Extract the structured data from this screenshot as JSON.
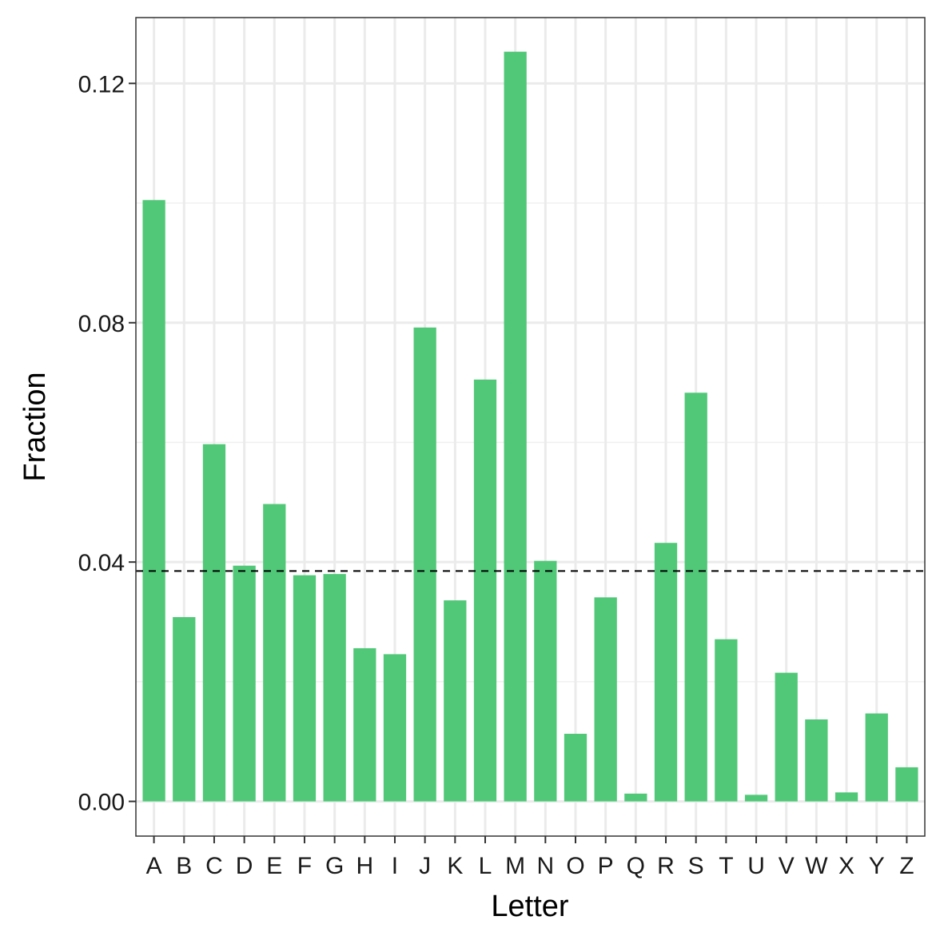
{
  "chart_data": {
    "type": "bar",
    "title": "",
    "xlabel": "Letter",
    "ylabel": "Fraction",
    "categories": [
      "A",
      "B",
      "C",
      "D",
      "E",
      "F",
      "G",
      "H",
      "I",
      "J",
      "K",
      "L",
      "M",
      "N",
      "O",
      "P",
      "Q",
      "R",
      "S",
      "T",
      "U",
      "V",
      "W",
      "X",
      "Y",
      "Z"
    ],
    "values": [
      0.1005,
      0.0308,
      0.0597,
      0.0394,
      0.0497,
      0.0378,
      0.038,
      0.0256,
      0.0246,
      0.0792,
      0.0336,
      0.0705,
      0.1253,
      0.0402,
      0.0113,
      0.0341,
      0.0013,
      0.0432,
      0.0683,
      0.0271,
      0.0011,
      0.0215,
      0.0137,
      0.0015,
      0.0147,
      0.0057
    ],
    "reference_line": {
      "y": 0.0385,
      "style": "dashed",
      "color": "#000000"
    },
    "ylim": [
      -0.0058,
      0.131
    ],
    "yticks": [
      0.0,
      0.04,
      0.08,
      0.12
    ],
    "ytick_labels": [
      "0.00",
      "0.04",
      "0.08",
      "0.12"
    ],
    "grid": true,
    "bar_color": "#50c878",
    "legend": "none"
  }
}
